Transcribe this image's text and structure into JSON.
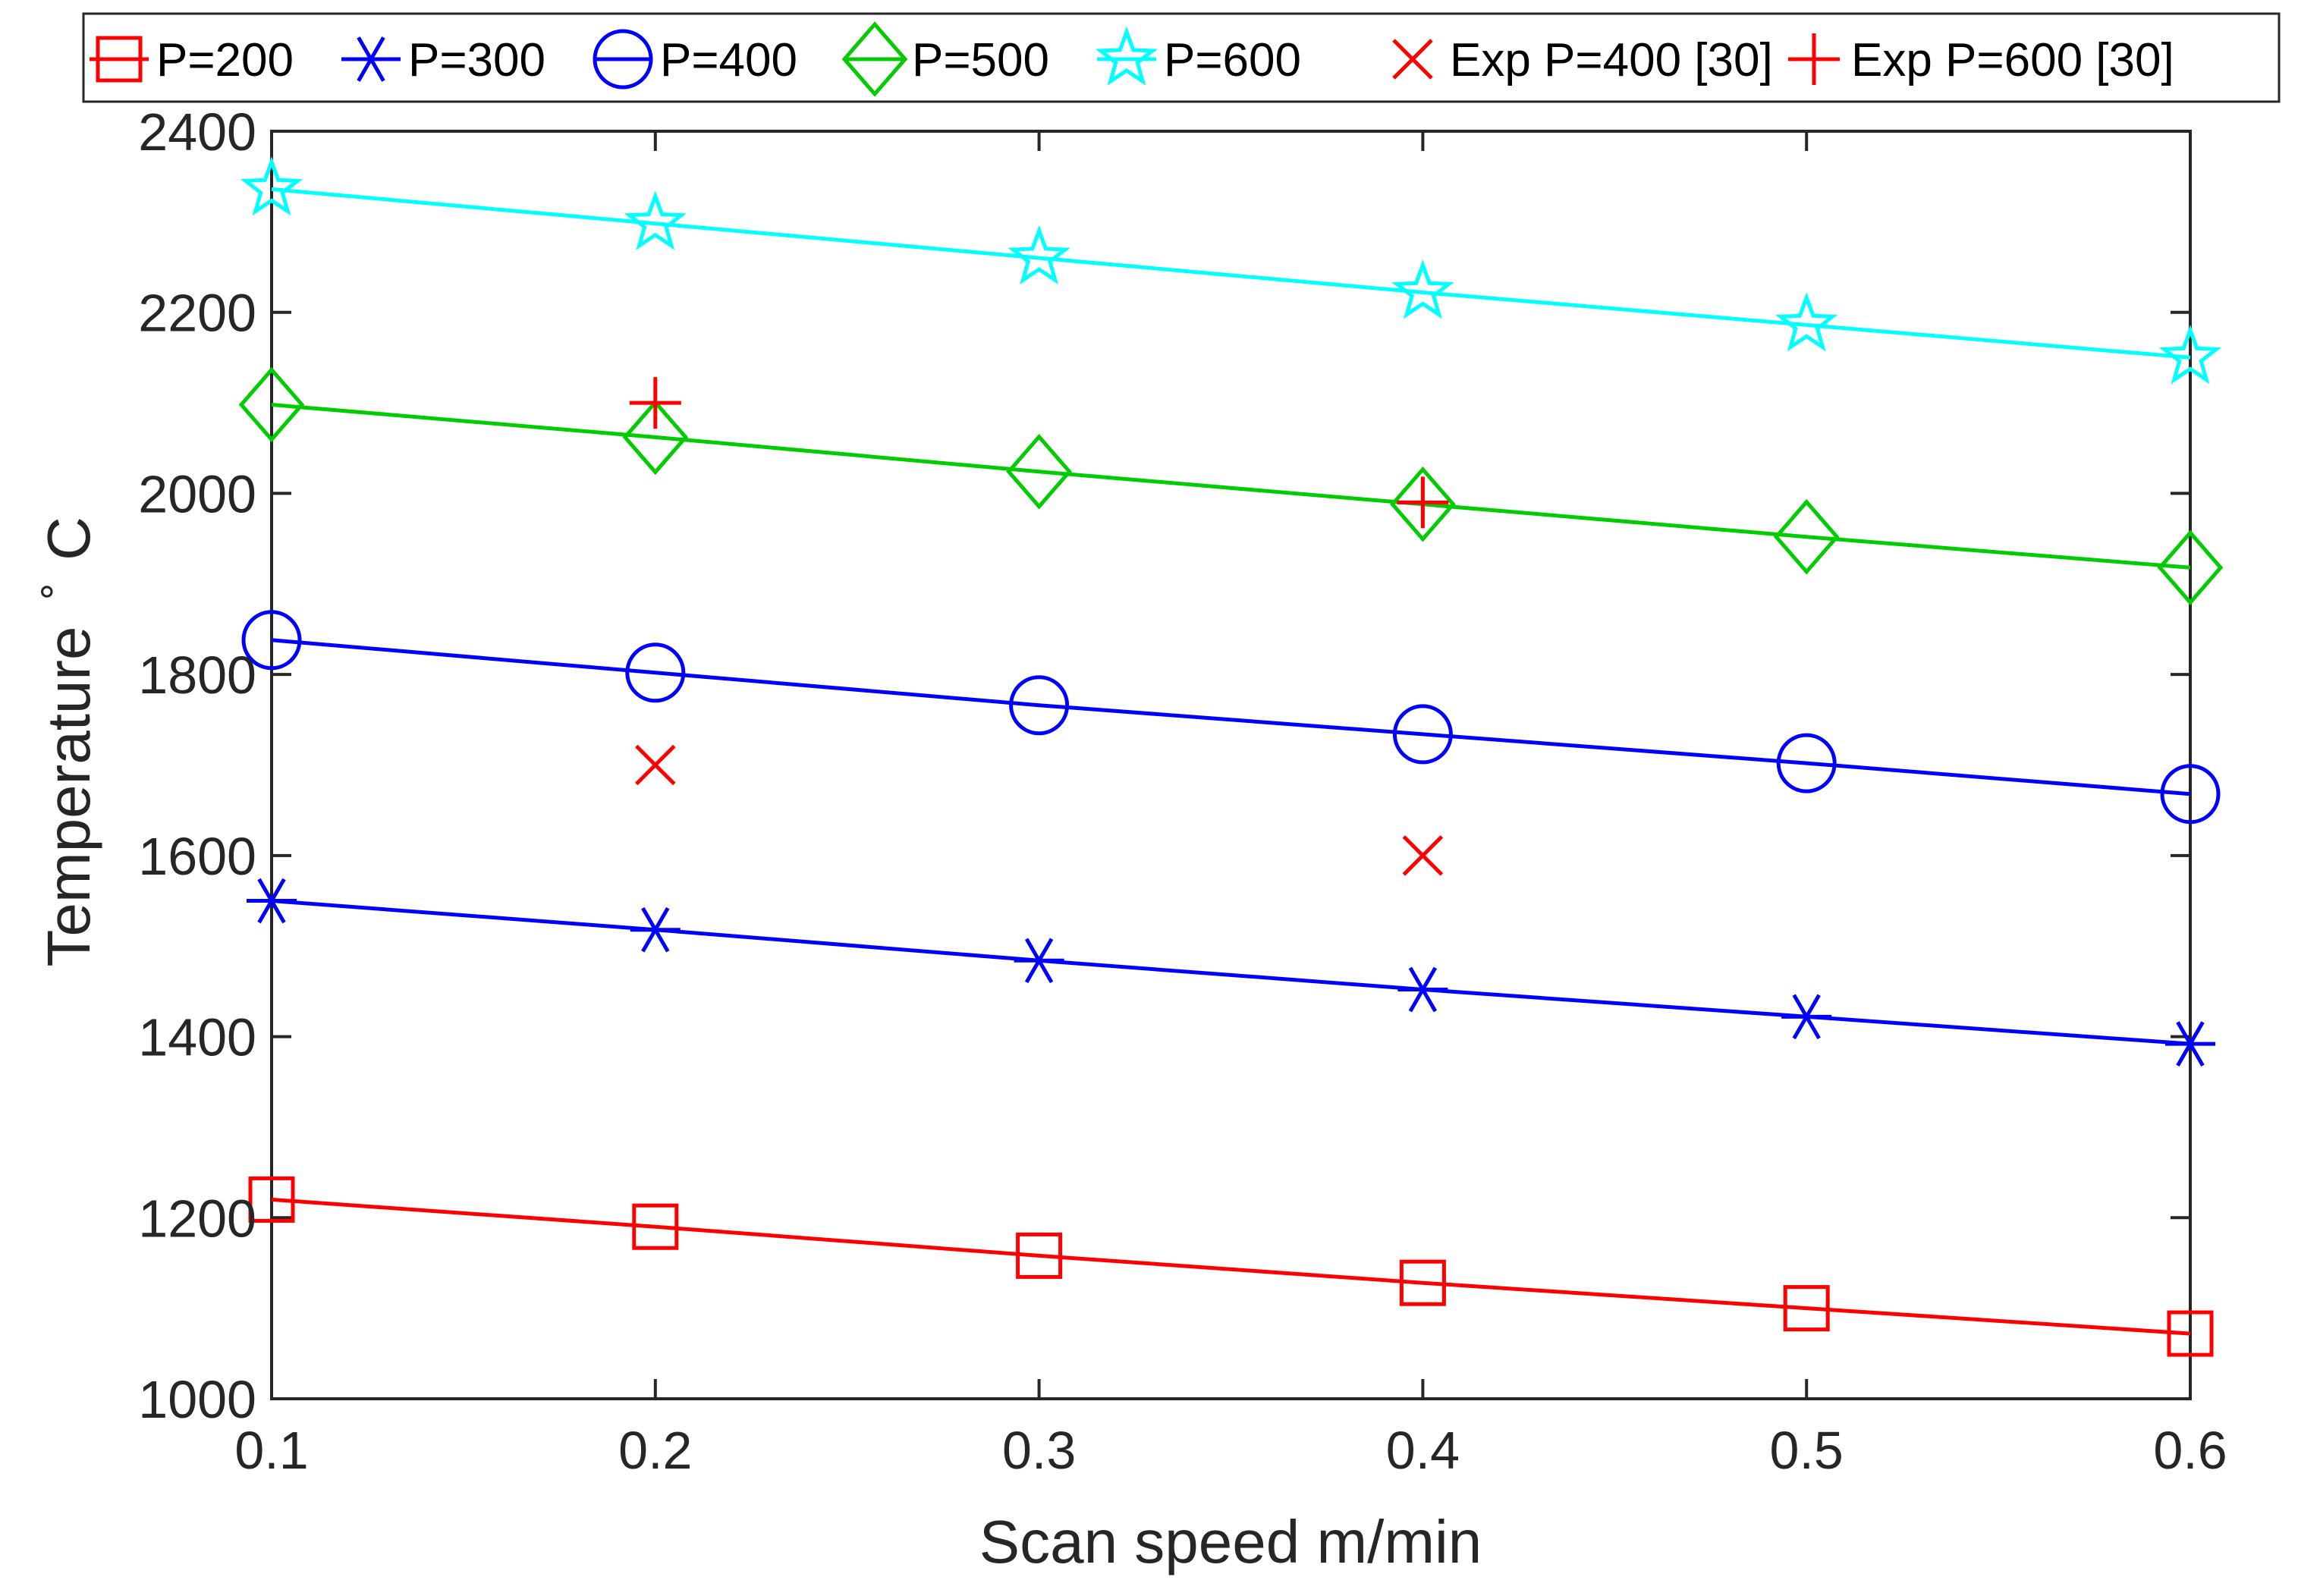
{
  "chart_data": {
    "type": "line",
    "title": "",
    "xlabel": "Scan speed m/min",
    "ylabel": "Temperature",
    "ylabel_unit": "C",
    "ylabel_degree": "∘",
    "xlim": [
      0.1,
      0.6
    ],
    "ylim": [
      1000,
      2400
    ],
    "xticks": [
      "0.1",
      "0.2",
      "0.3",
      "0.4",
      "0.5",
      "0.6"
    ],
    "yticks": [
      "1000",
      "1200",
      "1400",
      "1600",
      "1800",
      "2000",
      "2200",
      "2400"
    ],
    "grid": false,
    "legend_position": "top",
    "x": [
      0.1,
      0.2,
      0.3,
      0.4,
      0.5,
      0.6
    ],
    "series": [
      {
        "name": "P=200",
        "color": "#ff0000",
        "marker": "square",
        "values": [
          1220,
          1190,
          1158,
          1128,
          1100,
          1072
        ]
      },
      {
        "name": "P=300",
        "color": "#0000ff",
        "marker": "asterisk",
        "values": [
          1550,
          1518,
          1484,
          1452,
          1422,
          1392
        ]
      },
      {
        "name": "P=400",
        "color": "#0000ff",
        "marker": "circle",
        "values": [
          1838,
          1802,
          1766,
          1734,
          1702,
          1668
        ]
      },
      {
        "name": "P=500",
        "color": "#00cc00",
        "marker": "diamond",
        "values": [
          2098,
          2062,
          2024,
          1988,
          1952,
          1918
        ]
      },
      {
        "name": "P=600",
        "color": "#00ffff",
        "marker": "star",
        "values": [
          2336,
          2298,
          2260,
          2222,
          2186,
          2150
        ]
      }
    ],
    "experimental": [
      {
        "name": "Exp P=400 [30]",
        "color": "#ff0000",
        "marker": "x",
        "points": [
          {
            "x": 0.2,
            "y": 1700
          },
          {
            "x": 0.4,
            "y": 1600
          }
        ]
      },
      {
        "name": "Exp P=600 [30]",
        "color": "#ff0000",
        "marker": "plus",
        "points": [
          {
            "x": 0.2,
            "y": 2100
          },
          {
            "x": 0.4,
            "y": 1990
          }
        ]
      }
    ]
  }
}
